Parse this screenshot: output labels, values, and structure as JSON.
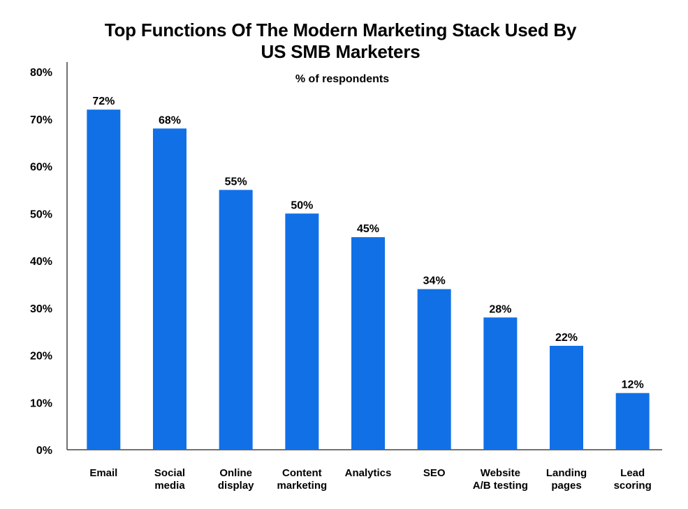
{
  "chart_data": {
    "type": "bar",
    "title_lines": [
      "Top Functions Of The Modern Marketing Stack Used By",
      "US SMB Marketers"
    ],
    "subtitle": "% of respondents",
    "categories": [
      [
        "Email"
      ],
      [
        "Social",
        "media"
      ],
      [
        "Online",
        "display"
      ],
      [
        "Content",
        "marketing"
      ],
      [
        "Analytics"
      ],
      [
        "SEO"
      ],
      [
        "Website",
        "A/B testing"
      ],
      [
        "Landing",
        "pages"
      ],
      [
        "Lead",
        "scoring"
      ]
    ],
    "values": [
      72,
      68,
      55,
      50,
      45,
      34,
      28,
      22,
      12
    ],
    "data_labels": [
      "72%",
      "68%",
      "55%",
      "50%",
      "45%",
      "34%",
      "28%",
      "22%",
      "12%"
    ],
    "yticks": [
      "0%",
      "10%",
      "20%",
      "30%",
      "40%",
      "50%",
      "60%",
      "70%",
      "80%"
    ],
    "ylim": [
      0,
      80
    ],
    "unit": "%",
    "grid": false,
    "legend": "none",
    "bar_color": "#1170E6",
    "axis_color": "#444444"
  }
}
